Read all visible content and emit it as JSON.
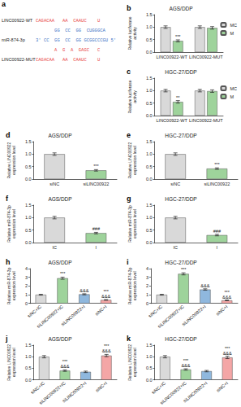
{
  "panel_a": {
    "label": "a",
    "rows": [
      {
        "label": "LINC00922-WT",
        "text": "CAGACAA   AA  CAAUC    U",
        "color": "#e8433f"
      },
      {
        "text": "       GG  CC  GG  CUGGGCA",
        "color": "#3a6fc4"
      },
      {
        "label": "miR-874-3p",
        "text": "3' CC  GG  CC  GG GCGGCCCGU 5'",
        "color": "#3a6fc4"
      },
      {
        "text": "       A  G  A  GAGC   C",
        "color": "#e8433f"
      },
      {
        "label": "LINC00922-MUT",
        "text": "CAGACAA   AA  CAAUC    U",
        "color": "#e8433f"
      }
    ]
  },
  "chart_data": [
    {
      "panel": "b",
      "type": "bar",
      "title": "AGS/DDP",
      "ylabel": "Relative luciferase\nactivity",
      "categories": [
        "LINC00922-WT",
        "LINC00922-MUT"
      ],
      "series": [
        {
          "name": "MC",
          "color": "#d9d9d9",
          "values": [
            1.0,
            1.0
          ],
          "errors": [
            0.05,
            0.05
          ]
        },
        {
          "name": "M",
          "color": "#9ed39b",
          "values": [
            0.45,
            0.97
          ],
          "errors": [
            0.04,
            0.05
          ],
          "significance": [
            "***",
            null
          ]
        }
      ],
      "ylim": [
        0,
        1.5
      ],
      "yticks": [
        {
          "value": 0,
          "label": "0.0"
        },
        {
          "value": 0.5,
          "label": "0.5"
        },
        {
          "value": 1,
          "label": "1.0"
        },
        {
          "value": 1.5,
          "label": "1.5"
        }
      ],
      "grid": false,
      "legend": "right"
    },
    {
      "panel": "c",
      "type": "bar",
      "title": "HGC-27/DDP",
      "ylabel": "Relative luciferase\nactivity",
      "categories": [
        "LINC00922-WT",
        "LINC00922-MUT"
      ],
      "series": [
        {
          "name": "MC",
          "color": "#d9d9d9",
          "values": [
            1.0,
            1.0
          ],
          "errors": [
            0.05,
            0.05
          ]
        },
        {
          "name": "M",
          "color": "#9ed39b",
          "values": [
            0.55,
            0.98
          ],
          "errors": [
            0.05,
            0.05
          ],
          "significance": [
            "**",
            null
          ]
        }
      ],
      "ylim": [
        0,
        1.5
      ],
      "yticks": [
        {
          "value": 0,
          "label": "0.0"
        },
        {
          "value": 0.5,
          "label": "0.5"
        },
        {
          "value": 1,
          "label": "1.0"
        },
        {
          "value": 1.5,
          "label": "1.5"
        }
      ],
      "grid": false,
      "legend": "right"
    },
    {
      "panel": "d",
      "type": "bar",
      "title": "AGS/DDP",
      "ylabel": "Relative LINC00922\nexpression level",
      "categories": [
        "siNC",
        "siLINC00922"
      ],
      "values": [
        1.0,
        0.35
      ],
      "errors": [
        0.05,
        0.03
      ],
      "significance": [
        null,
        "***"
      ],
      "colors": [
        "#d9d9d9",
        "#9ed39b"
      ],
      "ylim": [
        0,
        1.5
      ],
      "yticks": [
        {
          "value": 0,
          "label": "0.0"
        },
        {
          "value": 0.5,
          "label": "0.5"
        },
        {
          "value": 1,
          "label": "1.0"
        },
        {
          "value": 1.5,
          "label": "1.5"
        }
      ],
      "grid": false
    },
    {
      "panel": "e",
      "type": "bar",
      "title": "HGC-27/DDP",
      "ylabel": "Relative LINC00922\nexpression level",
      "categories": [
        "siNC",
        "siLINC00922"
      ],
      "values": [
        1.0,
        0.42
      ],
      "errors": [
        0.05,
        0.03
      ],
      "significance": [
        null,
        "***"
      ],
      "colors": [
        "#d9d9d9",
        "#9ed39b"
      ],
      "ylim": [
        0,
        1.5
      ],
      "yticks": [
        {
          "value": 0,
          "label": "0.0"
        },
        {
          "value": 0.5,
          "label": "0.5"
        },
        {
          "value": 1,
          "label": "1.0"
        },
        {
          "value": 1.5,
          "label": "1.5"
        }
      ],
      "grid": false
    },
    {
      "panel": "f",
      "type": "bar",
      "title": "AGS/DDP",
      "ylabel": "Relative miR-874-3p\nexpression level",
      "categories": [
        "IC",
        "I"
      ],
      "values": [
        1.0,
        0.38
      ],
      "errors": [
        0.05,
        0.03
      ],
      "significance": [
        null,
        "###"
      ],
      "colors": [
        "#d9d9d9",
        "#9ed39b"
      ],
      "ylim": [
        0,
        1.5
      ],
      "yticks": [
        {
          "value": 0,
          "label": "0.0"
        },
        {
          "value": 0.5,
          "label": "0.5"
        },
        {
          "value": 1,
          "label": "1.0"
        },
        {
          "value": 1.5,
          "label": "1.5"
        }
      ],
      "grid": false
    },
    {
      "panel": "g",
      "type": "bar",
      "title": "HGC-27/DDP",
      "ylabel": "Relative miR-874-3p\nexpression level",
      "categories": [
        "IC",
        "I"
      ],
      "values": [
        1.0,
        0.3
      ],
      "errors": [
        0.05,
        0.03
      ],
      "significance": [
        null,
        "###"
      ],
      "colors": [
        "#d9d9d9",
        "#9ed39b"
      ],
      "ylim": [
        0,
        1.5
      ],
      "yticks": [
        {
          "value": 0,
          "label": "0.0"
        },
        {
          "value": 0.5,
          "label": "0.5"
        },
        {
          "value": 1,
          "label": "1.0"
        },
        {
          "value": 1.5,
          "label": "1.5"
        }
      ],
      "grid": false
    },
    {
      "panel": "h",
      "type": "bar",
      "title": "AGS/DDP",
      "ylabel": "Relative miR-874-3p\nexpression level",
      "categories": [
        "siNC+IC",
        "siLINC00922+IC",
        "siLINC00922+I",
        "siNC+I"
      ],
      "values": [
        1.0,
        2.9,
        1.05,
        0.4
      ],
      "errors": [
        0.05,
        0.12,
        0.06,
        0.04
      ],
      "significance": [
        null,
        "***",
        "&&&",
        "***\n&&&"
      ],
      "colors": [
        "#d9d9d9",
        "#9ed39b",
        "#8fb8de",
        "#f4a6a6"
      ],
      "ylim": [
        0,
        4
      ],
      "yticks": [
        0,
        1,
        2,
        3,
        4
      ],
      "grid": false
    },
    {
      "panel": "i",
      "type": "bar",
      "title": "HGC-27/DDP",
      "ylabel": "Relative miR-874-3p\nexpression level",
      "categories": [
        "siNC+IC",
        "siLINC00922+IC",
        "siLINC00922+I",
        "siNC+I"
      ],
      "values": [
        1.0,
        3.4,
        1.6,
        0.35
      ],
      "errors": [
        0.05,
        0.12,
        0.08,
        0.04
      ],
      "significance": [
        null,
        "***",
        "&&&",
        "***\n&&&"
      ],
      "colors": [
        "#d9d9d9",
        "#9ed39b",
        "#8fb8de",
        "#f4a6a6"
      ],
      "ylim": [
        0,
        4
      ],
      "yticks": [
        0,
        1,
        2,
        3,
        4
      ],
      "grid": false
    },
    {
      "panel": "j",
      "type": "bar",
      "title": "AGS/DDP",
      "ylabel": "Relative LINC00922\nexpression level",
      "categories": [
        "siNC+IC",
        "siLINC00922+IC",
        "siLINC00922+I",
        "siNC+I"
      ],
      "values": [
        1.0,
        0.4,
        0.35,
        1.05
      ],
      "errors": [
        0.05,
        0.03,
        0.03,
        0.05
      ],
      "significance": [
        null,
        "***\n&&&",
        null,
        "***\n&&&"
      ],
      "colors": [
        "#d9d9d9",
        "#9ed39b",
        "#8fb8de",
        "#f4a6a6"
      ],
      "ylim": [
        0,
        1.5
      ],
      "yticks": [
        {
          "value": 0,
          "label": "0.0"
        },
        {
          "value": 0.5,
          "label": "0.5"
        },
        {
          "value": 1,
          "label": "1.0"
        },
        {
          "value": 1.5,
          "label": "1.5"
        }
      ],
      "grid": false
    },
    {
      "panel": "k",
      "type": "bar",
      "title": "HGC-27/DDP",
      "ylabel": "Relative LINC00922\nexpression level",
      "categories": [
        "siNC+IC",
        "siLINC00922+IC",
        "siLINC00922+I",
        "siNC+I"
      ],
      "values": [
        1.0,
        0.45,
        0.38,
        0.97
      ],
      "errors": [
        0.05,
        0.03,
        0.03,
        0.05
      ],
      "significance": [
        null,
        "***\n&&&",
        null,
        "***\n&&&"
      ],
      "colors": [
        "#d9d9d9",
        "#9ed39b",
        "#8fb8de",
        "#f4a6a6"
      ],
      "ylim": [
        0,
        1.5
      ],
      "yticks": [
        {
          "value": 0,
          "label": "0.0"
        },
        {
          "value": 0.5,
          "label": "0.5"
        },
        {
          "value": 1,
          "label": "1.0"
        },
        {
          "value": 1.5,
          "label": "1.5"
        }
      ],
      "grid": false
    }
  ]
}
